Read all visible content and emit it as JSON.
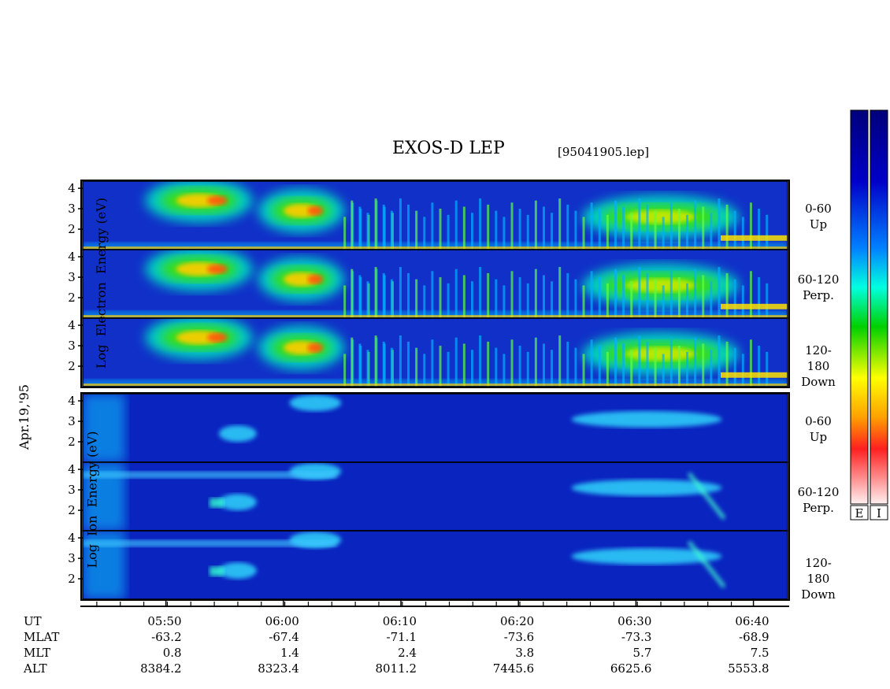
{
  "title": "EXOS-D LEP",
  "file_label": "[95041905.lep]",
  "date_label": "Apr.19,'95",
  "electron_block": {
    "ylabel": [
      "Log",
      "Electron",
      "Energy",
      "(eV)"
    ]
  },
  "ion_block": {
    "ylabel": [
      "Log",
      "Ion",
      "Energy",
      "(eV)"
    ]
  },
  "panel_labels": [
    {
      "range": "0-60",
      "dir": "Up"
    },
    {
      "range": "60-120",
      "dir": "Perp."
    },
    {
      "range": "120-180",
      "dir": "Down"
    },
    {
      "range": "0-60",
      "dir": "Up"
    },
    {
      "range": "60-120",
      "dir": "Perp."
    },
    {
      "range": "120-180",
      "dir": "Down"
    }
  ],
  "colorbar_labels": [
    "E",
    "I"
  ],
  "colors": {
    "background": "#0a1fb4",
    "bar": [
      "#ffd0d0",
      "#ff2020",
      "#ffa000",
      "#ffff00",
      "#00c000",
      "#00ffd0",
      "#0080ff",
      "#0000c0",
      "#00007a"
    ]
  },
  "chart_data": {
    "type": "heatmap",
    "y_ticks": [
      "4",
      "3",
      "2"
    ],
    "x_ticks": [
      "05:50",
      "06:00",
      "06:10",
      "06:20",
      "06:30",
      "06:40"
    ],
    "rows": [
      {
        "label": "UT",
        "values": [
          "05:50",
          "06:00",
          "06:10",
          "06:20",
          "06:30",
          "06:40"
        ]
      },
      {
        "label": "MLAT",
        "values": [
          "-63.2",
          "-67.4",
          "-71.1",
          "-73.6",
          "-73.3",
          "-68.9"
        ]
      },
      {
        "label": "MLT",
        "values": [
          "0.8",
          "1.4",
          "2.4",
          "3.8",
          "5.7",
          "7.5"
        ]
      },
      {
        "label": "ALT",
        "values": [
          "8384.2",
          "8323.4",
          "8011.2",
          "7445.6",
          "6625.6",
          "5553.8"
        ]
      }
    ],
    "electron_hot_blobs": [
      {
        "t0": 0.1,
        "t1": 0.23,
        "e": 3.4,
        "level": "high"
      },
      {
        "t0": 0.26,
        "t1": 0.36,
        "e": 2.9,
        "level": "high"
      },
      {
        "t0": 0.72,
        "t1": 0.92,
        "e": 2.6,
        "level": "medium"
      }
    ],
    "ion_blobs": [
      {
        "t0": 0.2,
        "t1": 0.24,
        "e": 2.4
      },
      {
        "t0": 0.3,
        "t1": 0.36,
        "e": 3.9
      },
      {
        "t0": 0.7,
        "t1": 0.9,
        "e": 3.1
      }
    ]
  }
}
